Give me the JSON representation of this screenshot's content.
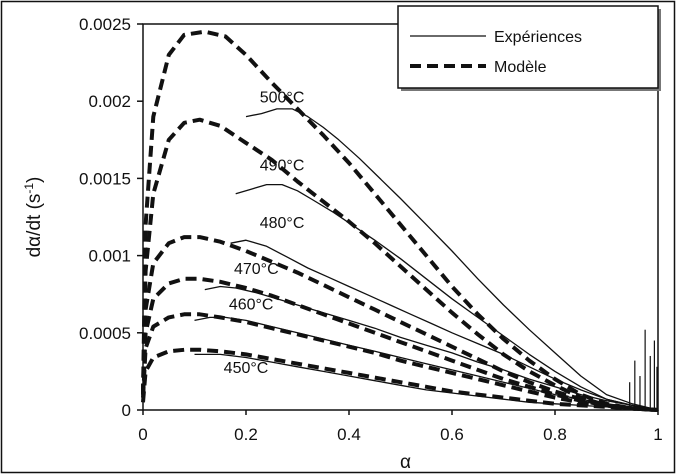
{
  "chart_data": {
    "type": "line",
    "xlabel": "α",
    "ylabel": "dα/dt (s",
    "ylabel_sup": "-1",
    "ylabel_close": ")",
    "xlim": [
      0,
      1
    ],
    "ylim": [
      0,
      0.0025
    ],
    "x_ticks": [
      "0",
      "0.2",
      "0.4",
      "0.6",
      "0.8",
      "1"
    ],
    "y_ticks": [
      "0",
      "0.0005",
      "0.001",
      "0.0015",
      "0.002",
      "0.0025"
    ],
    "grid": false,
    "legend_position": "top-right",
    "legend": [
      {
        "label": "Expériences",
        "style": "solid-thin"
      },
      {
        "label": "Modèle",
        "style": "dashed-thick"
      }
    ],
    "series": [
      {
        "name": "Modèle",
        "group": "500°C",
        "x": [
          0.0,
          0.005,
          0.02,
          0.05,
          0.08,
          0.12,
          0.16,
          0.2,
          0.25,
          0.3,
          0.35,
          0.4,
          0.45,
          0.5,
          0.55,
          0.6,
          0.65,
          0.7,
          0.75,
          0.8,
          0.85,
          0.9,
          0.95,
          1.0
        ],
        "y": [
          0.0001,
          0.0012,
          0.0019,
          0.0023,
          0.00243,
          0.00245,
          0.00242,
          0.0023,
          0.00212,
          0.00195,
          0.00178,
          0.0016,
          0.0014,
          0.0012,
          0.001,
          0.0008,
          0.00062,
          0.00046,
          0.00032,
          0.0002,
          0.0001,
          4e-05,
          1e-05,
          0.0
        ]
      },
      {
        "name": "Expériences",
        "group": "500°C",
        "x": [
          0.2,
          0.23,
          0.26,
          0.29,
          0.32,
          0.35,
          0.38,
          0.42,
          0.46,
          0.5,
          0.55,
          0.6,
          0.65,
          0.7,
          0.75,
          0.8,
          0.85,
          0.9,
          0.95,
          1.0
        ],
        "y": [
          0.0019,
          0.00192,
          0.00195,
          0.00195,
          0.0019,
          0.00183,
          0.00175,
          0.00163,
          0.0015,
          0.00137,
          0.0012,
          0.00103,
          0.00085,
          0.00068,
          0.00052,
          0.00037,
          0.00022,
          0.0001,
          4e-05,
          0.0
        ]
      },
      {
        "name": "Modèle",
        "group": "490°C",
        "x": [
          0.0,
          0.005,
          0.02,
          0.05,
          0.08,
          0.11,
          0.15,
          0.2,
          0.25,
          0.3,
          0.35,
          0.4,
          0.45,
          0.5,
          0.55,
          0.6,
          0.65,
          0.7,
          0.75,
          0.8,
          0.85,
          0.9,
          0.95,
          1.0
        ],
        "y": [
          0.0001,
          0.0009,
          0.0014,
          0.00175,
          0.00186,
          0.00188,
          0.00184,
          0.00173,
          0.00162,
          0.00148,
          0.00135,
          0.00122,
          0.00108,
          0.00093,
          0.00078,
          0.00063,
          0.00049,
          0.00036,
          0.00025,
          0.00016,
          8e-05,
          3e-05,
          1e-05,
          0.0
        ]
      },
      {
        "name": "Expériences",
        "group": "490°C",
        "x": [
          0.18,
          0.21,
          0.24,
          0.27,
          0.3,
          0.33,
          0.37,
          0.41,
          0.45,
          0.5,
          0.55,
          0.6,
          0.65,
          0.7,
          0.75,
          0.8,
          0.85,
          0.9,
          0.95,
          1.0
        ],
        "y": [
          0.0014,
          0.00143,
          0.00146,
          0.00146,
          0.00142,
          0.00136,
          0.00128,
          0.00119,
          0.0011,
          0.00098,
          0.00085,
          0.00072,
          0.0006,
          0.00048,
          0.00036,
          0.00025,
          0.00015,
          7e-05,
          3e-05,
          0.0
        ]
      },
      {
        "name": "Modèle",
        "group": "480°C",
        "x": [
          0.0,
          0.005,
          0.02,
          0.05,
          0.08,
          0.11,
          0.15,
          0.2,
          0.25,
          0.3,
          0.35,
          0.4,
          0.45,
          0.5,
          0.55,
          0.6,
          0.65,
          0.7,
          0.75,
          0.8,
          0.85,
          0.9,
          0.95,
          1.0
        ],
        "y": [
          0.0001,
          0.00065,
          0.00095,
          0.00108,
          0.00112,
          0.00112,
          0.00109,
          0.00103,
          0.00096,
          0.00089,
          0.00081,
          0.00073,
          0.00065,
          0.00057,
          0.00049,
          0.00041,
          0.00033,
          0.00025,
          0.00018,
          0.00012,
          7e-05,
          3e-05,
          1e-05,
          0.0
        ]
      },
      {
        "name": "Expériences",
        "group": "480°C",
        "x": [
          0.17,
          0.2,
          0.24,
          0.28,
          0.32,
          0.36,
          0.4,
          0.44,
          0.48,
          0.52,
          0.56,
          0.6,
          0.65,
          0.7,
          0.75,
          0.8,
          0.85,
          0.9,
          0.95,
          1.0
        ],
        "y": [
          0.00108,
          0.0011,
          0.00106,
          0.00099,
          0.00092,
          0.00086,
          0.0008,
          0.00074,
          0.00068,
          0.00062,
          0.00056,
          0.0005,
          0.00043,
          0.00036,
          0.00028,
          0.0002,
          0.00013,
          7e-05,
          3e-05,
          0.0
        ]
      },
      {
        "name": "Modèle",
        "group": "470°C",
        "x": [
          0.0,
          0.005,
          0.02,
          0.05,
          0.08,
          0.11,
          0.15,
          0.2,
          0.25,
          0.3,
          0.35,
          0.4,
          0.45,
          0.5,
          0.55,
          0.6,
          0.65,
          0.7,
          0.75,
          0.8,
          0.85,
          0.9,
          0.95,
          1.0
        ],
        "y": [
          0.0001,
          0.0005,
          0.00072,
          0.00082,
          0.00085,
          0.00085,
          0.00083,
          0.00079,
          0.00074,
          0.00068,
          0.00062,
          0.00056,
          0.0005,
          0.00044,
          0.00038,
          0.00032,
          0.00026,
          0.0002,
          0.00015,
          0.0001,
          6e-05,
          3e-05,
          1e-05,
          0.0
        ]
      },
      {
        "name": "Expériences",
        "group": "470°C",
        "x": [
          0.12,
          0.15,
          0.18,
          0.22,
          0.26,
          0.3,
          0.35,
          0.4,
          0.45,
          0.5,
          0.55,
          0.6,
          0.65,
          0.7,
          0.75,
          0.8,
          0.85,
          0.9,
          0.95,
          1.0
        ],
        "y": [
          0.00078,
          0.0008,
          0.00079,
          0.00076,
          0.00072,
          0.00068,
          0.00063,
          0.00058,
          0.00053,
          0.00047,
          0.00042,
          0.00037,
          0.00031,
          0.00026,
          0.0002,
          0.00015,
          0.0001,
          6e-05,
          3e-05,
          0.0
        ]
      },
      {
        "name": "Modèle",
        "group": "460°C",
        "x": [
          0.0,
          0.005,
          0.02,
          0.05,
          0.08,
          0.11,
          0.15,
          0.2,
          0.25,
          0.3,
          0.35,
          0.4,
          0.45,
          0.5,
          0.55,
          0.6,
          0.65,
          0.7,
          0.75,
          0.8,
          0.85,
          0.9,
          0.95,
          1.0
        ],
        "y": [
          8e-05,
          0.0004,
          0.00054,
          0.0006,
          0.00062,
          0.00062,
          0.0006,
          0.00057,
          0.00053,
          0.00049,
          0.00045,
          0.00041,
          0.00037,
          0.00032,
          0.00028,
          0.00024,
          0.0002,
          0.00016,
          0.00012,
          8e-05,
          5e-05,
          3e-05,
          1e-05,
          0.0
        ]
      },
      {
        "name": "Expériences",
        "group": "460°C",
        "x": [
          0.1,
          0.13,
          0.16,
          0.2,
          0.25,
          0.3,
          0.35,
          0.4,
          0.45,
          0.5,
          0.55,
          0.6,
          0.65,
          0.7,
          0.75,
          0.8,
          0.85,
          0.9,
          0.95,
          1.0
        ],
        "y": [
          0.00058,
          0.0006,
          0.0006,
          0.00058,
          0.00054,
          0.0005,
          0.00046,
          0.00042,
          0.00038,
          0.00034,
          0.0003,
          0.00026,
          0.00022,
          0.00018,
          0.00014,
          0.0001,
          7e-05,
          4e-05,
          2e-05,
          0.0
        ]
      },
      {
        "name": "Modèle",
        "group": "450°C",
        "x": [
          0.0,
          0.005,
          0.02,
          0.05,
          0.08,
          0.11,
          0.15,
          0.2,
          0.25,
          0.3,
          0.35,
          0.4,
          0.45,
          0.5,
          0.55,
          0.6,
          0.65,
          0.7,
          0.75,
          0.8,
          0.85,
          0.9,
          0.95,
          1.0
        ],
        "y": [
          5e-05,
          0.00025,
          0.00034,
          0.00038,
          0.00039,
          0.00039,
          0.00038,
          0.00036,
          0.00033,
          0.0003,
          0.00027,
          0.00024,
          0.00021,
          0.00018,
          0.00015,
          0.00012,
          0.0001,
          8e-05,
          6e-05,
          4e-05,
          3e-05,
          2e-05,
          1e-05,
          0.0
        ]
      },
      {
        "name": "Expériences",
        "group": "450°C",
        "x": [
          0.1,
          0.15,
          0.2,
          0.25,
          0.3,
          0.35,
          0.4,
          0.45,
          0.5,
          0.55,
          0.6,
          0.65,
          0.7,
          0.75,
          0.8,
          0.85,
          0.9,
          0.95,
          1.0
        ],
        "y": [
          0.00036,
          0.00036,
          0.00034,
          0.00031,
          0.00028,
          0.00025,
          0.00022,
          0.00019,
          0.00016,
          0.00013,
          0.00011,
          9e-05,
          7e-05,
          5e-05,
          4e-05,
          3e-05,
          2e-05,
          1e-05,
          0.0
        ]
      }
    ],
    "curve_labels": [
      {
        "text": "500°C",
        "x": 0.27,
        "y": 0.00199
      },
      {
        "text": "490°C",
        "x": 0.27,
        "y": 0.00155
      },
      {
        "text": "480°C",
        "x": 0.27,
        "y": 0.00118
      },
      {
        "text": "470°C",
        "x": 0.22,
        "y": 0.00088
      },
      {
        "text": "460°C",
        "x": 0.21,
        "y": 0.00065
      },
      {
        "text": "450°C",
        "x": 0.2,
        "y": 0.00024
      }
    ],
    "spikes": [
      {
        "x": 0.945,
        "y": 0.00018
      },
      {
        "x": 0.955,
        "y": 0.00032
      },
      {
        "x": 0.965,
        "y": 0.00022
      },
      {
        "x": 0.975,
        "y": 0.00052
      },
      {
        "x": 0.985,
        "y": 0.00035
      },
      {
        "x": 0.993,
        "y": 0.00045
      },
      {
        "x": 0.998,
        "y": 0.00028
      }
    ],
    "colors": {
      "line": "#111111",
      "background": "#ffffff"
    }
  }
}
